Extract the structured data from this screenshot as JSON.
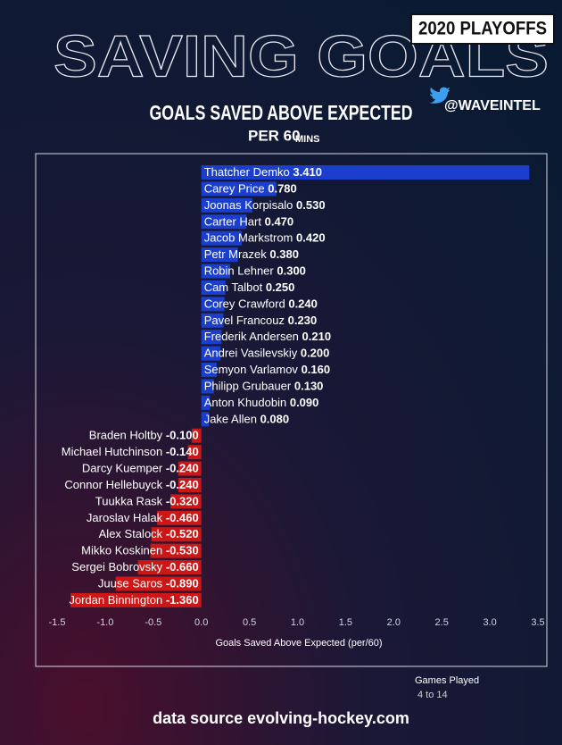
{
  "badge": "2020 PLAYOFFS",
  "headline": "SAVING GOALS",
  "handle": "@WAVEINTEL",
  "footer": "data source evolving-hockey.com",
  "filter": {
    "title": "Games Played",
    "range": "4 to 14"
  },
  "chart_data": {
    "type": "bar",
    "orientation": "horizontal",
    "title": "GOALS SAVED ABOVE EXPECTED",
    "subtitle": "PER 60",
    "subtitle_suffix": "MINS",
    "x_label": "Goals Saved Above Expected (per/60)",
    "categories": [
      "Thatcher Demko",
      "Carey Price",
      "Joonas Korpisalo",
      "Carter Hart",
      "Jacob Markstrom",
      "Petr Mrazek",
      "Robin Lehner",
      "Cam Talbot",
      "Corey Crawford",
      "Pavel Francouz",
      "Frederik Andersen",
      "Andrei Vasilevskiy",
      "Semyon Varlamov",
      "Philipp Grubauer",
      "Anton Khudobin",
      "Jake Allen",
      "Braden Holtby",
      "Michael Hutchinson",
      "Darcy Kuemper",
      "Connor Hellebuyck",
      "Tuukka Rask",
      "Jaroslav Halak",
      "Alex Stalock",
      "Mikko Koskinen",
      "Sergei Bobrovsky",
      "Juuse Saros",
      "Jordan Binnington"
    ],
    "values": [
      3.41,
      0.78,
      0.53,
      0.47,
      0.42,
      0.38,
      0.3,
      0.25,
      0.24,
      0.23,
      0.21,
      0.2,
      0.16,
      0.13,
      0.09,
      0.08,
      -0.1,
      -0.14,
      -0.24,
      -0.24,
      -0.32,
      -0.46,
      -0.52,
      -0.53,
      -0.66,
      -0.89,
      -1.36
    ],
    "value_labels": [
      "3.410",
      "0.780",
      "0.530",
      "0.470",
      "0.420",
      "0.380",
      "0.300",
      "0.250",
      "0.240",
      "0.230",
      "0.210",
      "0.200",
      "0.160",
      "0.130",
      "0.090",
      "0.080",
      "-0.100",
      "-0.140",
      "-0.240",
      "-0.240",
      "-0.320",
      "-0.460",
      "-0.520",
      "-0.530",
      "-0.660",
      "-0.890",
      "-1.360"
    ],
    "positive_color": "#1b3fcc",
    "negative_color": "#cc1717",
    "xlim": [
      -1.5,
      3.5
    ],
    "xticks": [
      -1.5,
      {
        "value": -1,
        "label": "-1.0"
      },
      -0.5,
      {
        "value": 0,
        "label": "0.0"
      },
      0.5,
      {
        "value": 1,
        "label": "1.0"
      },
      1.5,
      {
        "value": 2,
        "label": "2.0"
      },
      2.5,
      {
        "value": 3,
        "label": "3.0"
      },
      3.5
    ]
  }
}
